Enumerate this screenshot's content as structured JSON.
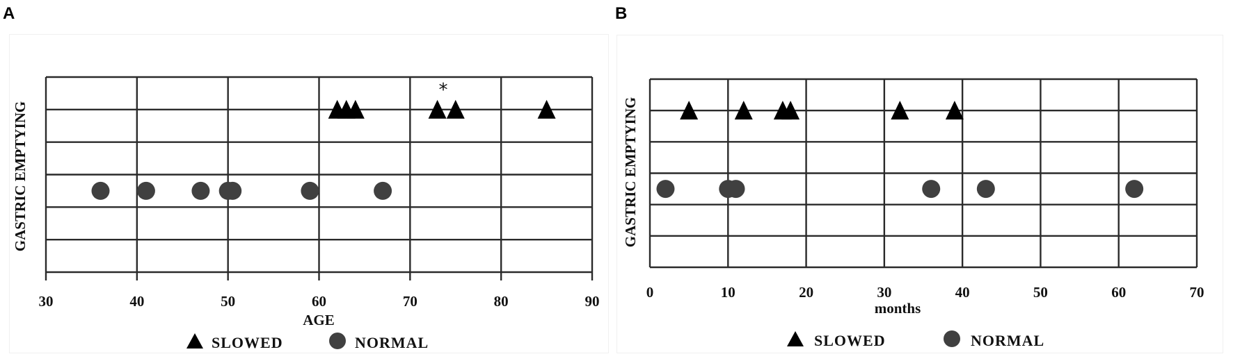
{
  "panels": [
    {
      "letter": "A"
    },
    {
      "letter": "B"
    }
  ],
  "colors": {
    "grid": "#2a2a2a",
    "slowed_marker": "#000000",
    "normal_marker": "#404040",
    "background": "#ffffff"
  },
  "chart_data": [
    {
      "panel": "A",
      "type": "scatter",
      "title": "",
      "xlabel": "AGE",
      "ylabel": "GASTRIC EMPTYING",
      "xlim": [
        30,
        90
      ],
      "xticks": [
        30,
        40,
        50,
        60,
        70,
        80,
        90
      ],
      "y_rows": 6,
      "grid": true,
      "legend_position": "bottom",
      "legend": [
        {
          "label": "SLOWED",
          "marker": "triangle"
        },
        {
          "label": "NORMAL",
          "marker": "circle"
        }
      ],
      "series": [
        {
          "name": "SLOWED",
          "marker": "triangle",
          "x": [
            62,
            63,
            64,
            73,
            75,
            85
          ],
          "y_level": "upper (row line 1)"
        },
        {
          "name": "NORMAL",
          "marker": "circle",
          "x": [
            36,
            41,
            47,
            50,
            50.5,
            59,
            67
          ],
          "y_level": "lower (row 4)"
        }
      ],
      "annotations": [
        {
          "text": "*",
          "x": 74,
          "note": "above SLOWED points at 73 and 75"
        }
      ]
    },
    {
      "panel": "B",
      "type": "scatter",
      "title": "",
      "xlabel": "months",
      "ylabel": "GASTRIC EMPTYING",
      "xlim": [
        0,
        70
      ],
      "xticks": [
        0,
        10,
        20,
        30,
        40,
        50,
        60,
        70
      ],
      "y_rows": 6,
      "grid": true,
      "legend_position": "bottom",
      "legend": [
        {
          "label": "SLOWED",
          "marker": "triangle"
        },
        {
          "label": "NORMAL",
          "marker": "circle"
        }
      ],
      "series": [
        {
          "name": "SLOWED",
          "marker": "triangle",
          "x": [
            5,
            12,
            17,
            18,
            32,
            39
          ],
          "y_level": "upper (row line 1)"
        },
        {
          "name": "NORMAL",
          "marker": "circle",
          "x": [
            2,
            10,
            11,
            36,
            43,
            62
          ],
          "y_level": "lower (row 4)"
        }
      ],
      "annotations": []
    }
  ]
}
